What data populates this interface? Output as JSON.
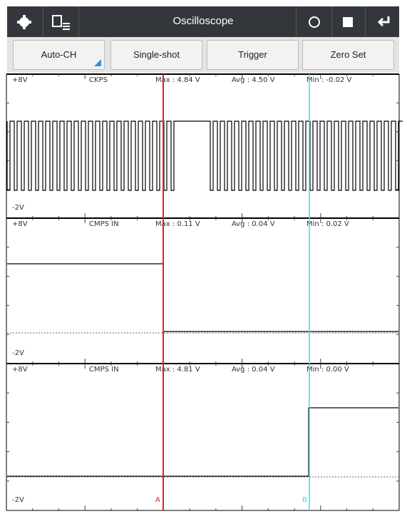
{
  "toolbar": {
    "title": "Oscilloscope"
  },
  "buttons": [
    "Auto-CH",
    "Single-shot",
    "Trigger",
    "Zero Set"
  ],
  "panels": [
    {
      "top": "+8V",
      "bottom": "-2V",
      "channel": "CKPS",
      "max": "Max : 4.84 V",
      "avg": "Avg : 4.50 V",
      "min": "Min : -0.02 V"
    },
    {
      "top": "+8V",
      "bottom": "-2V",
      "channel": "CMPS IN",
      "max": "Max : 0.11 V",
      "avg": "Avg : 0.04 V",
      "min": "Min : 0.02 V"
    },
    {
      "top": "+8V",
      "bottom": "-2V",
      "channel": "CMPS IN",
      "max": "Max : 4.81 V",
      "avg": "Avg : 0.04 V",
      "min": "Min : 0.00 V"
    }
  ],
  "cursors": {
    "a": "A",
    "b": "B"
  }
}
